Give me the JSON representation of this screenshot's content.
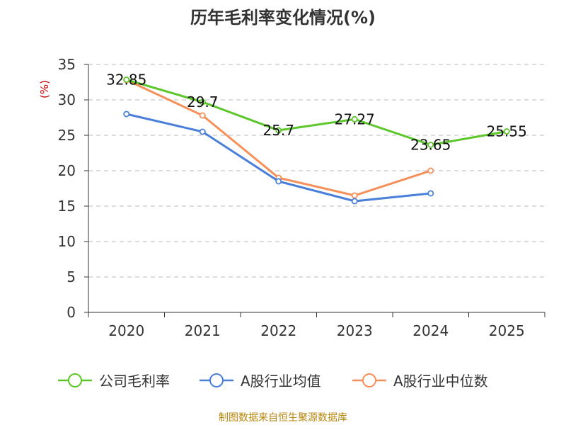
{
  "chart_data": {
    "type": "line",
    "title": "历年毛利率变化情况(%)",
    "ylabel": "(%)",
    "xlabel": "",
    "categories": [
      "2020",
      "2021",
      "2022",
      "2023",
      "2024",
      "2025"
    ],
    "ylim": [
      0,
      35
    ],
    "yticks": [
      0,
      5,
      10,
      15,
      20,
      25,
      30,
      35
    ],
    "grid": true,
    "legend_position": "bottom",
    "series": [
      {
        "name": "公司毛利率",
        "color": "#5bc72a",
        "values": [
          32.85,
          29.7,
          25.7,
          27.27,
          23.65,
          25.55
        ],
        "labels": [
          "32.85",
          "29.7",
          "25.7",
          "27.27",
          "23.65",
          "25.55"
        ],
        "show_labels": true
      },
      {
        "name": "A股行业均值",
        "color": "#4a80d9",
        "values": [
          28.0,
          25.5,
          18.5,
          15.7,
          16.8,
          null
        ],
        "show_labels": false
      },
      {
        "name": "A股行业中位数",
        "color": "#f5905a",
        "values": [
          32.8,
          27.8,
          19.0,
          16.5,
          20.0,
          null
        ],
        "show_labels": false
      }
    ],
    "source": "制图数据来自恒生聚源数据库"
  }
}
